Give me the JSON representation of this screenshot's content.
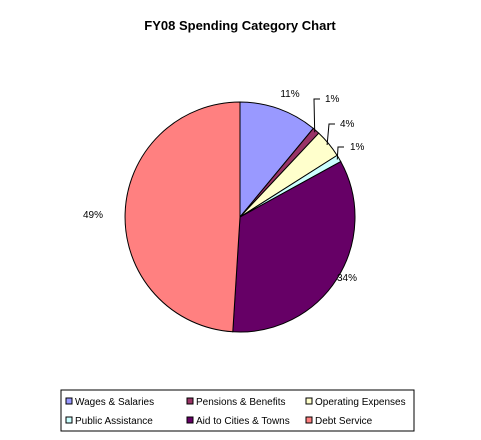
{
  "chart_data": {
    "type": "pie",
    "title": "FY08 Spending Category Chart",
    "slices": [
      {
        "label": "Wages & Salaries",
        "value": 11,
        "value_label": "11%",
        "color": "#9999ff"
      },
      {
        "label": "Pensions & Benefits",
        "value": 1,
        "value_label": "1%",
        "color": "#993366"
      },
      {
        "label": "Operating Expenses",
        "value": 4,
        "value_label": "4%",
        "color": "#ffffcc"
      },
      {
        "label": "Public Assistance",
        "value": 1,
        "value_label": "1%",
        "color": "#ccffff"
      },
      {
        "label": "Aid to Cities & Towns",
        "value": 34,
        "value_label": "34%",
        "color": "#660066"
      },
      {
        "label": "Debt Service",
        "value": 49,
        "value_label": "49%",
        "color": "#ff8080"
      }
    ],
    "legend_position": "bottom",
    "start_angle": "12 o'clock",
    "direction": "clockwise"
  }
}
